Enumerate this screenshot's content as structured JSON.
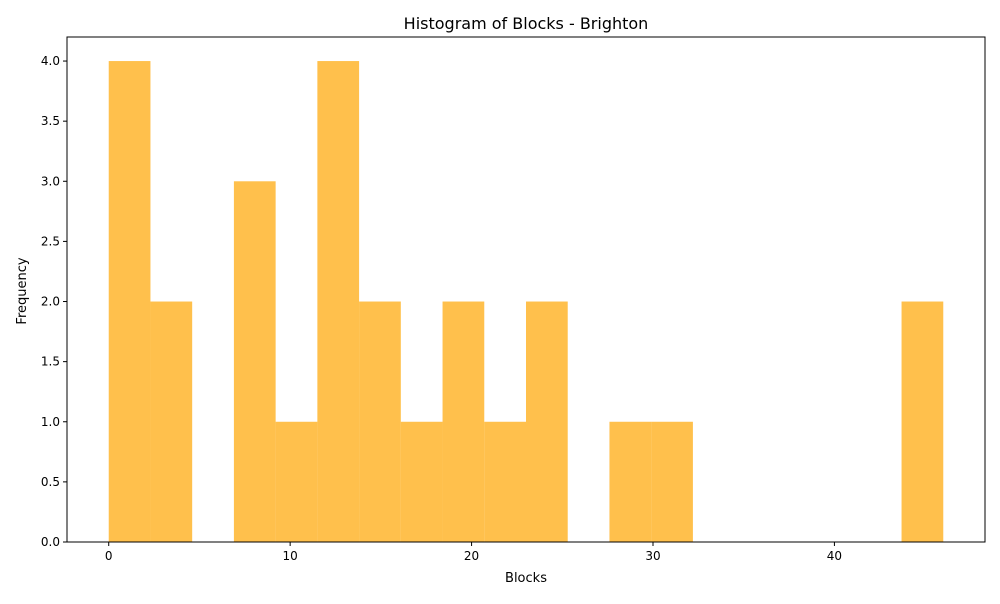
{
  "chart_data": {
    "type": "bar",
    "subtype": "histogram",
    "title": "Histogram of Blocks - Brighton",
    "xlabel": "Blocks",
    "ylabel": "Frequency",
    "bin_edges": [
      0,
      2.3,
      4.6,
      6.9,
      9.2,
      11.5,
      13.8,
      16.1,
      18.4,
      20.7,
      23.0,
      25.3,
      27.6,
      29.9,
      32.2,
      34.5,
      36.8,
      39.1,
      41.4,
      43.7,
      46.0
    ],
    "counts": [
      4,
      2,
      0,
      3,
      1,
      4,
      2,
      1,
      2,
      1,
      2,
      0,
      1,
      1,
      0,
      0,
      0,
      0,
      0,
      2
    ],
    "xlim": [
      -2.3,
      48.3
    ],
    "ylim": [
      0,
      4.2
    ],
    "x_ticks": [
      0,
      10,
      20,
      30,
      40
    ],
    "x_tick_labels": [
      "0",
      "10",
      "20",
      "30",
      "40"
    ],
    "y_ticks": [
      0,
      0.5,
      1.0,
      1.5,
      2.0,
      2.5,
      3.0,
      3.5,
      4.0
    ],
    "y_tick_labels": [
      "0.0",
      "0.5",
      "1.0",
      "1.5",
      "2.0",
      "2.5",
      "3.0",
      "3.5",
      "4.0"
    ],
    "bar_color": "#FFA500",
    "bar_opacity": 0.7,
    "grid": false,
    "legend": "none"
  }
}
